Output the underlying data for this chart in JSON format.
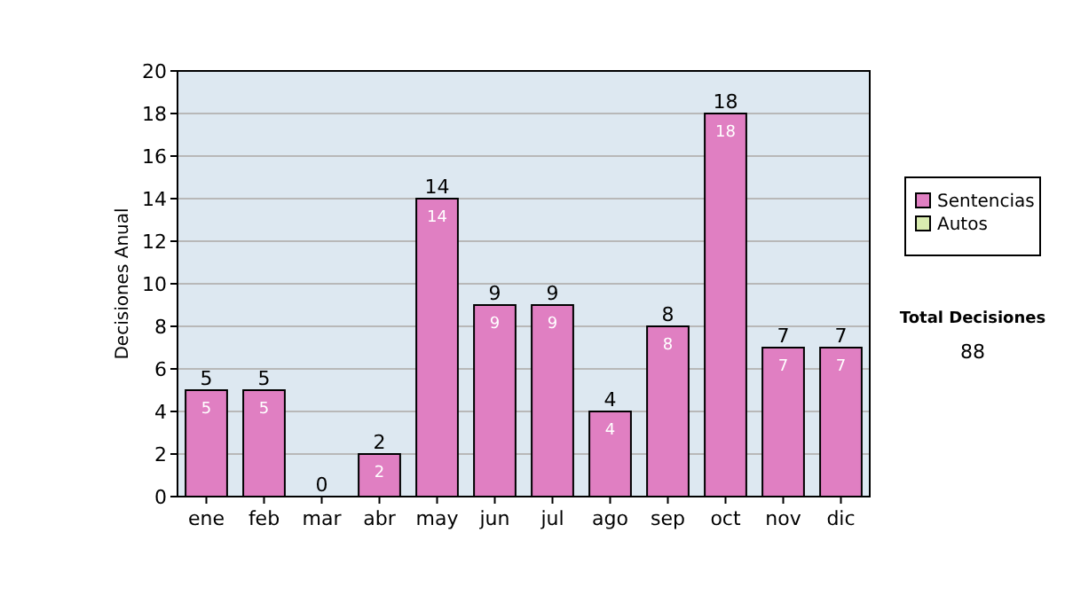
{
  "chart_data": {
    "type": "bar",
    "stacked": true,
    "ylabel": "Decisiones Anual",
    "categories": [
      "ene",
      "feb",
      "mar",
      "abr",
      "may",
      "jun",
      "jul",
      "ago",
      "sep",
      "oct",
      "nov",
      "dic"
    ],
    "series": [
      {
        "name": "Sentencias",
        "color": "#e07fc2",
        "values": [
          5,
          5,
          0,
          2,
          14,
          9,
          9,
          4,
          8,
          18,
          7,
          7
        ],
        "value_labels": [
          "5",
          "5",
          null,
          "2",
          "14",
          "9",
          "9",
          "4",
          "8",
          "18",
          "7",
          "7"
        ]
      },
      {
        "name": "Autos",
        "color": "#d9ecb0",
        "values": [
          0,
          0,
          0,
          0,
          0,
          0,
          0,
          0,
          0,
          0,
          0,
          0
        ],
        "value_labels": [
          null,
          null,
          null,
          null,
          null,
          null,
          null,
          null,
          null,
          null,
          null,
          null
        ]
      }
    ],
    "totals": [
      "5",
      "5",
      "0",
      "2",
      "14",
      "9",
      "9",
      "4",
      "8",
      "18",
      "7",
      "7"
    ],
    "ylim": [
      0,
      20
    ],
    "yticks": [
      0,
      2,
      4,
      6,
      8,
      10,
      12,
      14,
      16,
      18,
      20
    ],
    "grid": "y",
    "legend": "right",
    "annotations": [
      "Total Decisiones",
      "88"
    ]
  }
}
